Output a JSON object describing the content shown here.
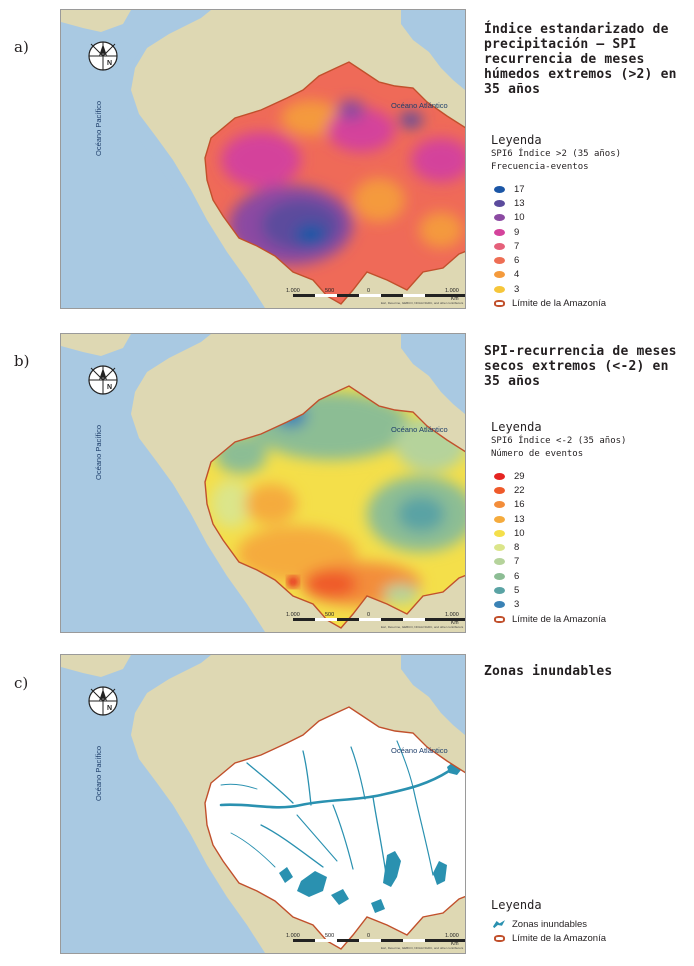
{
  "panels": [
    {
      "letter": "a)",
      "title": "Índice estandarizado de precipitación – SPI recurrencia de meses húmedos extremos (>2) en 35 años",
      "legend_title": "Leyenda",
      "legend_sub1": "SPI6 Índice >2 (35 años)",
      "legend_sub2": "Frecuencia-eventos",
      "legend_items": [
        {
          "label": "17",
          "color": "#1b56a6"
        },
        {
          "label": "13",
          "color": "#5b4b9d"
        },
        {
          "label": "10",
          "color": "#8b4aa2"
        },
        {
          "label": "9",
          "color": "#d4439b"
        },
        {
          "label": "7",
          "color": "#e5607a"
        },
        {
          "label": "6",
          "color": "#ee6e54"
        },
        {
          "label": "4",
          "color": "#f49a3c"
        },
        {
          "label": "3",
          "color": "#f6c63a"
        }
      ],
      "boundary_label": "Límite de la Amazonía"
    },
    {
      "letter": "b)",
      "title": "SPI-recurrencia de meses secos extremos (<-2) en 35 años",
      "legend_title": "Leyenda",
      "legend_sub1": "SPI6 Índice <-2 (35 años)",
      "legend_sub2": "Número de eventos",
      "legend_items": [
        {
          "label": "29",
          "color": "#e52421"
        },
        {
          "label": "22",
          "color": "#ef5a2a"
        },
        {
          "label": "16",
          "color": "#f38d3a"
        },
        {
          "label": "13",
          "color": "#f5ab3d"
        },
        {
          "label": "10",
          "color": "#f4df4a"
        },
        {
          "label": "8",
          "color": "#dbe58a"
        },
        {
          "label": "7",
          "color": "#b5d39b"
        },
        {
          "label": "6",
          "color": "#8cbd94"
        },
        {
          "label": "5",
          "color": "#5aa3a4"
        },
        {
          "label": "3",
          "color": "#3a82b5"
        }
      ],
      "boundary_label": "Límite de la Amazonía"
    },
    {
      "letter": "c)",
      "title": "Zonas inundables",
      "legend_title": "Leyenda",
      "flood_label": "Zonas inundables",
      "boundary_label": "Límite de la Amazonía"
    }
  ],
  "map_labels": {
    "ocean_pacific": "Océano Pacífico",
    "ocean_atlantic": "Océano Atlántico",
    "north": "N",
    "scale_ticks": [
      "1.000",
      "500",
      "0",
      "1.000"
    ],
    "scale_unit": "Km",
    "credits": "Esri, DeLorme, GEBCO, NOAA NGDC, and other contributors"
  },
  "colors": {
    "ocean": "#a9c9e2",
    "land": "#ded8b3",
    "boundary": "#c1502c",
    "flood": "#2a91b0"
  }
}
